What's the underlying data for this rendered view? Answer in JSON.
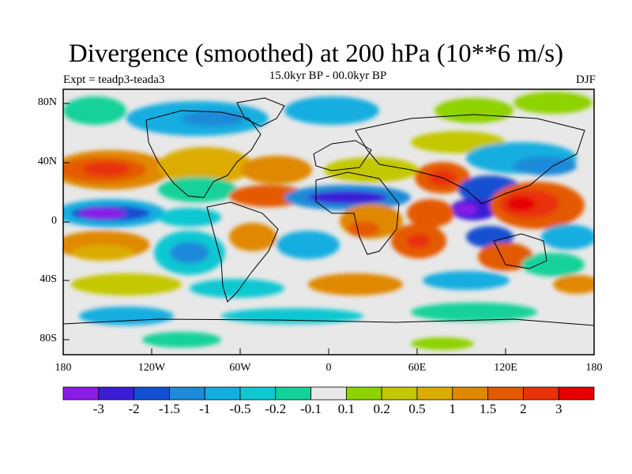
{
  "figure": {
    "title": "Divergence (smoothed) at 200 hPa (10**6 m/s)",
    "subtitle_left": "Expt = teadp3-teada3",
    "subtitle_center": "15.0kyr BP - 00.0kyr BP",
    "subtitle_right": "DJF"
  },
  "axes": {
    "y_labels": [
      "80N",
      "40N",
      "0",
      "40S",
      "80S"
    ],
    "x_labels": [
      "180",
      "120W",
      "60W",
      "0",
      "60E",
      "120E",
      "180"
    ]
  },
  "colorbar": {
    "labels": [
      "-3",
      "-2",
      "-1.5",
      "-1",
      "-0.5",
      "-0.2",
      "-0.1",
      "0.1",
      "0.2",
      "0.5",
      "1",
      "1.5",
      "2",
      "3"
    ],
    "colors": [
      "#8a1ce6",
      "#3a1ed6",
      "#1450d2",
      "#1e8ad8",
      "#14aee0",
      "#10c8d2",
      "#12d29a",
      "#e8e8e8",
      "#8ed200",
      "#c4c800",
      "#dcac00",
      "#e08800",
      "#e45a00",
      "#e8320a",
      "#e60000"
    ]
  },
  "chart_data": {
    "type": "heatmap",
    "title": "Divergence (smoothed) at 200 hPa (10**6 m/s)",
    "x_range": [
      -180,
      180
    ],
    "y_range": [
      -90,
      90
    ],
    "season": "DJF",
    "contour_levels": [
      -3,
      -2,
      -1.5,
      -1,
      -0.5,
      -0.2,
      -0.1,
      0.1,
      0.2,
      0.5,
      1,
      1.5,
      2,
      3
    ]
  }
}
